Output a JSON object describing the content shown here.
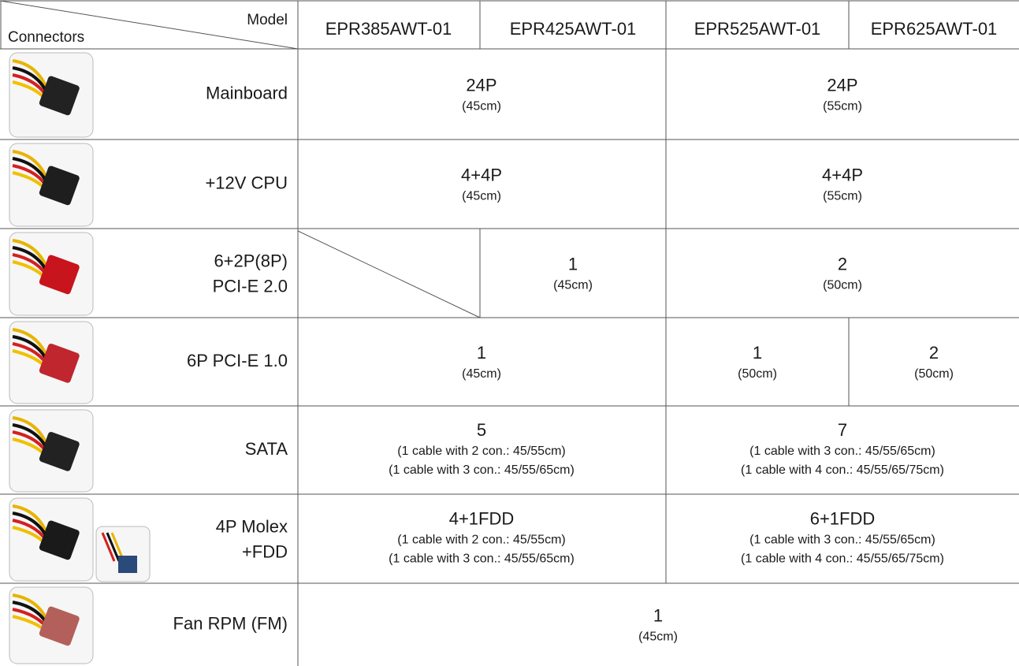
{
  "header": {
    "corner_top": "Model",
    "corner_bottom": "Connectors",
    "models": [
      "EPR385AWT-01",
      "EPR425AWT-01",
      "EPR525AWT-01",
      "EPR625AWT-01"
    ]
  },
  "rows": [
    {
      "label": [
        "Mainboard"
      ],
      "cells": [
        {
          "value": "24P",
          "notes": [
            "(45cm)"
          ]
        },
        {
          "value": "24P",
          "notes": [
            "(55cm)"
          ]
        }
      ]
    },
    {
      "label": [
        "+12V CPU"
      ],
      "cells": [
        {
          "value": "4+4P",
          "notes": [
            "(45cm)"
          ]
        },
        {
          "value": "4+4P",
          "notes": [
            "(55cm)"
          ]
        }
      ]
    },
    {
      "label": [
        "6+2P(8P)",
        "PCI-E 2.0"
      ],
      "cells": [
        {
          "value": "1",
          "notes": [
            "(45cm)"
          ]
        },
        {
          "value": "2",
          "notes": [
            "(50cm)"
          ]
        }
      ]
    },
    {
      "label": [
        "6P PCI-E 1.0"
      ],
      "cells": [
        {
          "value": "1",
          "notes": [
            "(45cm)"
          ]
        },
        {
          "value": "1",
          "notes": [
            "(50cm)"
          ]
        },
        {
          "value": "2",
          "notes": [
            "(50cm)"
          ]
        }
      ]
    },
    {
      "label": [
        "SATA"
      ],
      "cells": [
        {
          "value": "5",
          "notes": [
            "(1 cable with 2 con.: 45/55cm)",
            "(1 cable with 3 con.: 45/55/65cm)"
          ]
        },
        {
          "value": "7",
          "notes": [
            "(1 cable with 3 con.: 45/55/65cm)",
            "(1 cable with 4 con.: 45/55/65/75cm)"
          ]
        }
      ]
    },
    {
      "label": [
        "4P Molex",
        "+FDD"
      ],
      "cells": [
        {
          "value": "4+1FDD",
          "notes": [
            "(1 cable with 2 con.: 45/55cm)",
            "(1 cable with 3 con.: 45/55/65cm)"
          ]
        },
        {
          "value": "6+1FDD",
          "notes": [
            "(1 cable with 3 con.: 45/55/65cm)",
            "(1 cable with 4 con.: 45/55/65/75cm)"
          ]
        }
      ]
    },
    {
      "label": [
        "Fan RPM (FM)"
      ],
      "cells": [
        {
          "value": "1",
          "notes": [
            "(45cm)"
          ]
        }
      ]
    }
  ]
}
